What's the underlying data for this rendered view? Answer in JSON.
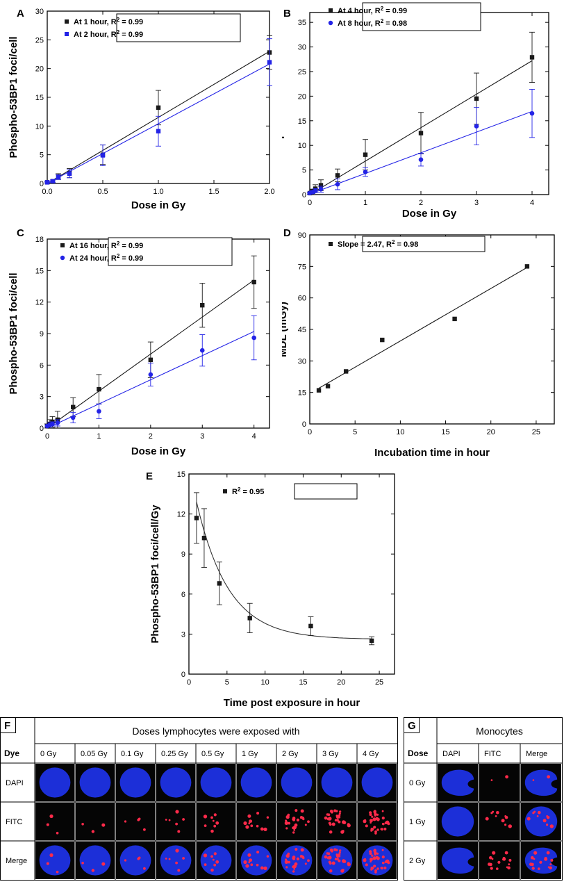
{
  "colors": {
    "black": "#1a1a1a",
    "blue": "#2323e6",
    "nucleus": "#1c2fd8",
    "foci": "#ff2a4a",
    "dark": "#050505"
  },
  "chart_data": [
    {
      "id": "A",
      "type": "scatter",
      "panel_label": "A",
      "xlabel": "Dose in Gy",
      "ylabel": "Phospho-53BP1 foci/cell",
      "xlim": [
        0,
        2.0
      ],
      "ylim": [
        0,
        30
      ],
      "xticks": [
        "0.0",
        "0.5",
        "1.0",
        "1.5",
        "2.0"
      ],
      "xtick_values": [
        0,
        0.5,
        1.0,
        1.5,
        2.0
      ],
      "yticks": [
        "0",
        "5",
        "10",
        "15",
        "20",
        "25",
        "30"
      ],
      "ytick_values": [
        0,
        5,
        10,
        15,
        20,
        25,
        30
      ],
      "series": [
        {
          "name": "At 1 hour, R² = 0.99",
          "legend_prefix": "At 1 hour, R",
          "color": "#1a1a1a",
          "marker": "square",
          "x": [
            0,
            0.05,
            0.1,
            0.2,
            0.5,
            1.0,
            2.0
          ],
          "y": [
            0.2,
            0.4,
            1.2,
            1.8,
            5.0,
            13.2,
            22.8
          ],
          "err": [
            0.1,
            0.2,
            0.5,
            0.8,
            1.7,
            3.0,
            2.9
          ],
          "fit": [
            0,
            0,
            2.0,
            23.0
          ]
        },
        {
          "name": "At 2 hour, R² = 0.99",
          "legend_prefix": "At 2 hour, R",
          "color": "#2323e6",
          "marker": "square",
          "x": [
            0,
            0.05,
            0.1,
            0.2,
            0.5,
            1.0,
            2.0
          ],
          "y": [
            0.2,
            0.4,
            1.1,
            1.7,
            4.9,
            9.1,
            21.1
          ],
          "err": [
            0.1,
            0.2,
            0.4,
            0.7,
            1.8,
            2.6,
            4.1
          ],
          "fit": [
            0,
            0,
            2.0,
            20.8
          ]
        }
      ]
    },
    {
      "id": "B",
      "type": "scatter",
      "panel_label": "B",
      "xlabel": "Dose in Gy",
      "ylabel": "Phospho-53BP1 foci/cell",
      "xlim": [
        0,
        4.3
      ],
      "ylim": [
        0,
        37
      ],
      "xticks": [
        "0",
        "1",
        "2",
        "3",
        "4"
      ],
      "xtick_values": [
        0,
        1,
        2,
        3,
        4
      ],
      "yticks": [
        "0",
        "5",
        "10",
        "15",
        "20",
        "25",
        "30",
        "35"
      ],
      "ytick_values": [
        0,
        5,
        10,
        15,
        20,
        25,
        30,
        35
      ],
      "series": [
        {
          "name": "At 4 hour, R² = 0.99",
          "legend_prefix": "At 4 hour, R",
          "color": "#1a1a1a",
          "marker": "square",
          "x": [
            0,
            0.05,
            0.1,
            0.2,
            0.5,
            1,
            2,
            3,
            4
          ],
          "y": [
            0.3,
            0.7,
            1.2,
            1.9,
            3.9,
            8.1,
            12.5,
            19.5,
            27.9
          ],
          "err": [
            0.2,
            0.4,
            0.8,
            1.1,
            1.3,
            3.1,
            4.2,
            5.2,
            5.1
          ],
          "fit": [
            0,
            0,
            4,
            27.2
          ]
        },
        {
          "name": "At 8 hour, R² = 0.98",
          "legend_prefix": "At 8 hour, R",
          "color": "#2323e6",
          "marker": "circle",
          "x": [
            0,
            0.05,
            0.1,
            0.2,
            0.5,
            1,
            2,
            3,
            4
          ],
          "y": [
            0.3,
            0.5,
            0.8,
            1.1,
            2.1,
            4.6,
            7.1,
            13.9,
            16.5
          ],
          "err": [
            0.2,
            0.3,
            0.4,
            0.6,
            1.1,
            0.9,
            1.3,
            3.8,
            4.9
          ],
          "fit": [
            0,
            0.1,
            4,
            16.9
          ]
        }
      ]
    },
    {
      "id": "C",
      "type": "scatter",
      "panel_label": "C",
      "xlabel": "Dose in Gy",
      "ylabel": "Phospho-53BP1 foci/cell",
      "xlim": [
        0,
        4.3
      ],
      "ylim": [
        0,
        18
      ],
      "xticks": [
        "0",
        "1",
        "2",
        "3",
        "4"
      ],
      "xtick_values": [
        0,
        1,
        2,
        3,
        4
      ],
      "yticks": [
        "0",
        "3",
        "6",
        "9",
        "12",
        "15",
        "18"
      ],
      "ytick_values": [
        0,
        3,
        6,
        9,
        12,
        15,
        18
      ],
      "series": [
        {
          "name": "At 16 hour, R² = 0.99",
          "legend_prefix": "At 16 hour, R",
          "color": "#1a1a1a",
          "marker": "square",
          "x": [
            0,
            0.05,
            0.1,
            0.2,
            0.5,
            1,
            2,
            3,
            4
          ],
          "y": [
            0.2,
            0.4,
            0.6,
            0.8,
            2.0,
            3.7,
            6.5,
            11.7,
            13.9
          ],
          "err": [
            0.2,
            0.4,
            0.5,
            0.8,
            0.9,
            1.4,
            1.7,
            2.1,
            2.5
          ],
          "fit": [
            0,
            0,
            4,
            14.1
          ]
        },
        {
          "name": "At 24 hour, R² = 0.99",
          "legend_prefix": "At 24 hour, R",
          "color": "#2323e6",
          "marker": "circle",
          "x": [
            0,
            0.05,
            0.1,
            0.2,
            0.5,
            1,
            2,
            3,
            4
          ],
          "y": [
            0.2,
            0.3,
            0.4,
            0.5,
            1.0,
            1.6,
            5.1,
            7.4,
            8.6
          ],
          "err": [
            0.1,
            0.2,
            0.2,
            0.3,
            0.5,
            0.7,
            1.1,
            1.5,
            2.1
          ],
          "fit": [
            0,
            0,
            4,
            9.2
          ]
        }
      ]
    },
    {
      "id": "D",
      "type": "scatter",
      "panel_label": "D",
      "xlabel": "Incubation time in hour",
      "ylabel": "MDL (mGy)",
      "xlim": [
        0,
        27
      ],
      "ylim": [
        0,
        90
      ],
      "xticks": [
        "0",
        "5",
        "10",
        "15",
        "20",
        "25"
      ],
      "xtick_values": [
        0,
        5,
        10,
        15,
        20,
        25
      ],
      "yticks": [
        "0",
        "15",
        "30",
        "45",
        "60",
        "75",
        "90"
      ],
      "ytick_values": [
        0,
        15,
        30,
        45,
        60,
        75,
        90
      ],
      "series": [
        {
          "name": "Slope = 2.47, R² = 0.98",
          "legend_prefix": "Slope = 2.47, R",
          "color": "#1a1a1a",
          "marker": "square",
          "x": [
            1,
            2,
            4,
            8,
            16,
            24
          ],
          "y": [
            16,
            18,
            25,
            40,
            50,
            75
          ],
          "err": [],
          "fit": [
            1,
            17,
            24,
            74.5
          ]
        }
      ]
    },
    {
      "id": "E",
      "type": "scatter",
      "panel_label": "E",
      "xlabel": "Time post exposure in hour",
      "ylabel": "Phospho-53BP1 foci/cell/Gy",
      "xlim": [
        0,
        27
      ],
      "ylim": [
        0,
        15
      ],
      "xticks": [
        "0",
        "5",
        "10",
        "15",
        "20",
        "25"
      ],
      "xtick_values": [
        0,
        5,
        10,
        15,
        20,
        25
      ],
      "yticks": [
        "0",
        "3",
        "6",
        "9",
        "12",
        "15"
      ],
      "ytick_values": [
        0,
        3,
        6,
        9,
        12,
        15
      ],
      "series": [
        {
          "name": "R² = 0.95",
          "legend_prefix": "R",
          "color": "#1a1a1a",
          "marker": "square",
          "x": [
            1,
            2,
            4,
            8,
            16,
            24
          ],
          "y": [
            11.7,
            10.2,
            6.8,
            4.2,
            3.6,
            2.5
          ],
          "err": [
            1.9,
            2.2,
            1.6,
            1.1,
            0.7,
            0.3
          ],
          "curve": {
            "a": 2.6,
            "b": 10.3,
            "tau": 4.2,
            "x0": 1,
            "x1": 24
          }
        }
      ]
    }
  ],
  "panel_f": {
    "label": "F",
    "header": "Doses lymphocytes were exposed with",
    "row_header": "Dye",
    "columns": [
      "0 Gy",
      "0.05 Gy",
      "0.1 Gy",
      "0.25 Gy",
      "0.5 Gy",
      "1 Gy",
      "2 Gy",
      "3 Gy",
      "4 Gy"
    ],
    "rows": [
      "DAPI",
      "FITC",
      "Merge"
    ],
    "foci_counts": [
      3,
      3,
      4,
      6,
      8,
      12,
      22,
      28,
      34
    ]
  },
  "panel_g": {
    "label": "G",
    "header": "Monocytes",
    "row_header": "Dose",
    "columns": [
      "DAPI",
      "FITC",
      "Merge"
    ],
    "rows": [
      "0 Gy",
      "1 Gy",
      "2 Gy"
    ],
    "foci_counts": [
      2,
      10,
      16
    ]
  }
}
